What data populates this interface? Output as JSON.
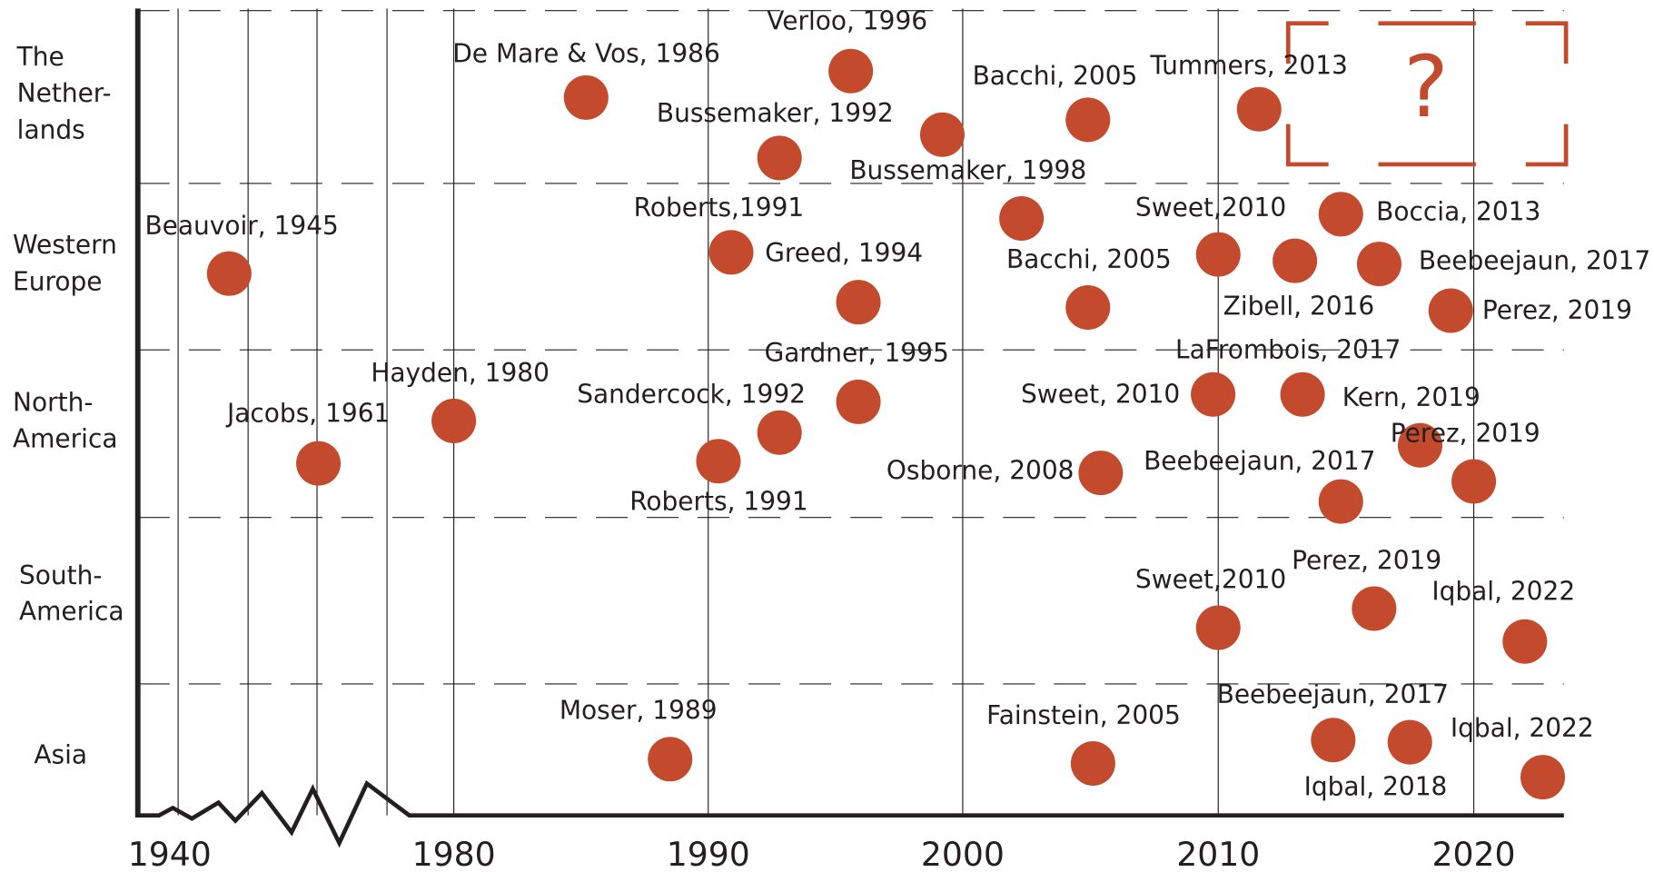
{
  "chart_data": {
    "type": "scatter",
    "color": "#c34a2c",
    "xticks": [
      1940,
      1980,
      1990,
      2000,
      2010,
      2020
    ],
    "minor_xticks": [
      1950,
      1960,
      1970
    ],
    "xlim": [
      1940,
      2024
    ],
    "axis_break": true,
    "annotation": "?",
    "series": [
      {
        "name": [
          "The",
          "Nether-",
          "lands"
        ],
        "x": [
          1985.2,
          1995.6,
          1992.8,
          1999.2,
          2004.9,
          2011.6
        ],
        "labels": [
          "De Mare & Vos, 1986",
          "Verloo, 1996",
          "Bussemaker, 1992",
          "Bussemaker, 1998",
          "Bacchi, 2005",
          "Tummers, 2013"
        ]
      },
      {
        "name": [
          "Western",
          "Europe"
        ],
        "x": [
          1947.3,
          1990.9,
          1995.9,
          2002.3,
          2004.9,
          2010,
          2013,
          2014.8,
          2016.3,
          2019.1
        ],
        "labels": [
          "Beauvoir, 1945",
          "Roberts,1991",
          "Greed, 1994",
          null,
          "Bacchi, 2005",
          "Sweet,2010",
          "Zibell, 2016",
          "Boccia, 2013",
          "Beebeejaun, 2017",
          "Perez, 2019"
        ]
      },
      {
        "name": [
          "North-",
          "America"
        ],
        "x": [
          1960.2,
          1980,
          1990.4,
          1992.8,
          1995.9,
          2005.4,
          2009.8,
          2013.3,
          2014.8,
          2017.9,
          2020
        ],
        "labels": [
          "Jacobs, 1961",
          "Hayden, 1980",
          "Roberts, 1991",
          "Sandercock, 1992",
          "Gardner, 1995",
          "Osborne, 2008",
          "Sweet, 2010",
          "LaFrombois, 2017",
          "Beebeejaun, 2017",
          "Kern, 2019",
          "Perez, 2019"
        ]
      },
      {
        "name": [
          "South-",
          "America"
        ],
        "x": [
          2010,
          2016.1,
          2022
        ],
        "labels": [
          "Sweet,2010",
          "Perez, 2019",
          "Iqbal, 2022"
        ]
      },
      {
        "name": [
          "Asia"
        ],
        "x": [
          1988.5,
          2005.1,
          2014.5,
          2017.5,
          2022.7
        ],
        "labels": [
          "Moser, 1989",
          "Fainstein, 2005",
          "Beebeejaun, 2017",
          "Iqbal, 2022",
          "Iqbal, 2018"
        ]
      }
    ]
  }
}
